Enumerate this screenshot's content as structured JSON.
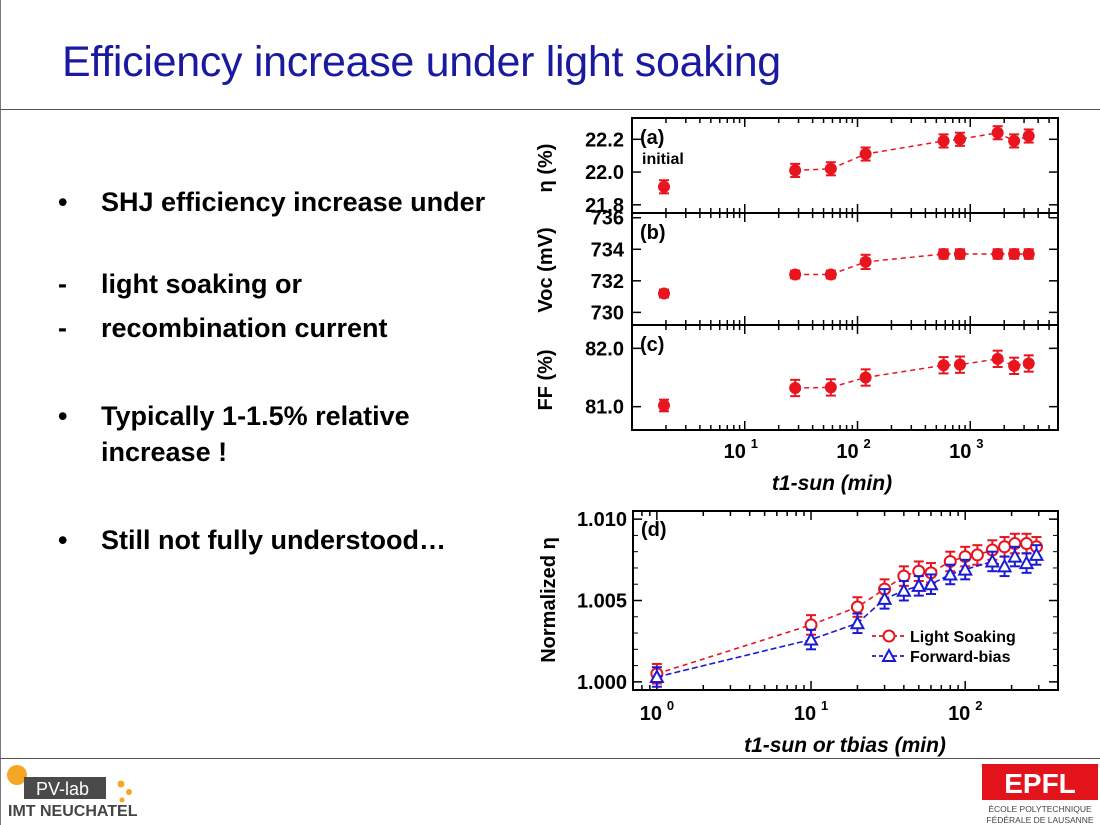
{
  "slide": {
    "title": "Efficiency increase under light soaking",
    "bullets": [
      {
        "marker": "•",
        "text": "SHJ efficiency increase under"
      },
      {
        "marker": "-",
        "text": "light soaking or"
      },
      {
        "marker": "-",
        "text": "recombination current"
      },
      {
        "marker": "•",
        "text": "Typically 1-1.5% relative increase !"
      },
      {
        "marker": "•",
        "text": "Still not fully understood…"
      }
    ]
  },
  "logos": {
    "pvlab": {
      "top": "PV-lab",
      "bottom": "IMT NEUCHATEL"
    },
    "epfl": {
      "mark": "EPFL",
      "line1": "ÉCOLE POLYTECHNIQUE",
      "line2": "FÉDÉRALE DE LAUSANNE"
    }
  },
  "colors": {
    "title": "#1a1aa0",
    "light_soaking": "#e8141e",
    "forward_bias": "#1a1ad6"
  },
  "chart_data": [
    {
      "type": "scatter",
      "panel": "(a)",
      "annotation": "initial",
      "ylabel": "η (%)",
      "xlabel": "t1-sun (min)",
      "xscale": "log",
      "xlim": [
        1,
        6000
      ],
      "ylim": [
        21.75,
        22.33
      ],
      "yticks": [
        "22.2",
        "22.0",
        "21.8"
      ],
      "initial_point": {
        "value": 21.91,
        "err": 0.04
      },
      "x": [
        28,
        58,
        118,
        580,
        810,
        1750,
        2450,
        3300
      ],
      "values": [
        22.01,
        22.02,
        22.11,
        22.19,
        22.2,
        22.24,
        22.19,
        22.22
      ],
      "errors": [
        0.04,
        0.04,
        0.04,
        0.04,
        0.04,
        0.04,
        0.04,
        0.04
      ],
      "dashed_trend": true
    },
    {
      "type": "scatter",
      "panel": "(b)",
      "ylabel": "Voc (mV)",
      "xscale": "log",
      "xlim": [
        1,
        6000
      ],
      "ylim": [
        729.2,
        736.3
      ],
      "yticks": [
        "736",
        "734",
        "732",
        "730"
      ],
      "initial_point": {
        "value": 731.2,
        "err": 0.25
      },
      "x": [
        28,
        58,
        118,
        580,
        810,
        1750,
        2450,
        3300
      ],
      "values": [
        732.4,
        732.4,
        733.2,
        733.7,
        733.7,
        733.7,
        733.7,
        733.7
      ],
      "errors": [
        0.25,
        0.25,
        0.45,
        0.3,
        0.3,
        0.3,
        0.3,
        0.3
      ],
      "dashed_trend": true
    },
    {
      "type": "scatter",
      "panel": "(c)",
      "ylabel": "FF (%)",
      "xlabel": "t1-sun (min)",
      "xscale": "log",
      "xlim": [
        1,
        6000
      ],
      "ylim": [
        80.6,
        82.4
      ],
      "yticks": [
        "82.0",
        "81.0"
      ],
      "xticks": [
        "10",
        "10",
        "10"
      ],
      "xtick_exponents": [
        "1",
        "2",
        "3"
      ],
      "initial_point": {
        "value": 81.02,
        "err": 0.1
      },
      "x": [
        28,
        58,
        118,
        580,
        810,
        1750,
        2450,
        3300
      ],
      "values": [
        81.32,
        81.33,
        81.5,
        81.71,
        81.72,
        81.82,
        81.7,
        81.74
      ],
      "errors": [
        0.14,
        0.14,
        0.14,
        0.14,
        0.14,
        0.14,
        0.14,
        0.14
      ],
      "dashed_trend": true
    },
    {
      "type": "line",
      "panel": "(d)",
      "ylabel": "Normalized η",
      "xlabel": "t1-sun or tbias (min)",
      "xscale": "log",
      "xlim": [
        0.7,
        400
      ],
      "ylim": [
        0.9995,
        1.0105
      ],
      "yticks": [
        "1.010",
        "1.005",
        "1.000"
      ],
      "xticks": [
        "10",
        "10",
        "10"
      ],
      "xtick_exponents": [
        "0",
        "1",
        "2"
      ],
      "legend_position": "bottom-right",
      "series": [
        {
          "name": "Light Soaking",
          "marker": "circle",
          "color": "#e8141e",
          "x": [
            1,
            10,
            20,
            30,
            40,
            50,
            60,
            80,
            100,
            120,
            150,
            180,
            210,
            250,
            290
          ],
          "values": [
            1.0005,
            1.0035,
            1.0046,
            1.0057,
            1.0065,
            1.0068,
            1.0067,
            1.0074,
            1.0077,
            1.0078,
            1.0081,
            1.0083,
            1.0085,
            1.0085,
            1.0083
          ],
          "err": 0.0006
        },
        {
          "name": "Forward-bias",
          "marker": "triangle",
          "color": "#1a1ad6",
          "x": [
            1,
            10,
            20,
            30,
            40,
            50,
            60,
            80,
            100,
            150,
            180,
            210,
            250,
            290
          ],
          "values": [
            1.0003,
            1.0026,
            1.0036,
            1.0051,
            1.0056,
            1.0059,
            1.006,
            1.0066,
            1.0069,
            1.0074,
            1.0071,
            1.0077,
            1.0073,
            1.0078
          ],
          "err": 0.0006
        }
      ]
    }
  ]
}
